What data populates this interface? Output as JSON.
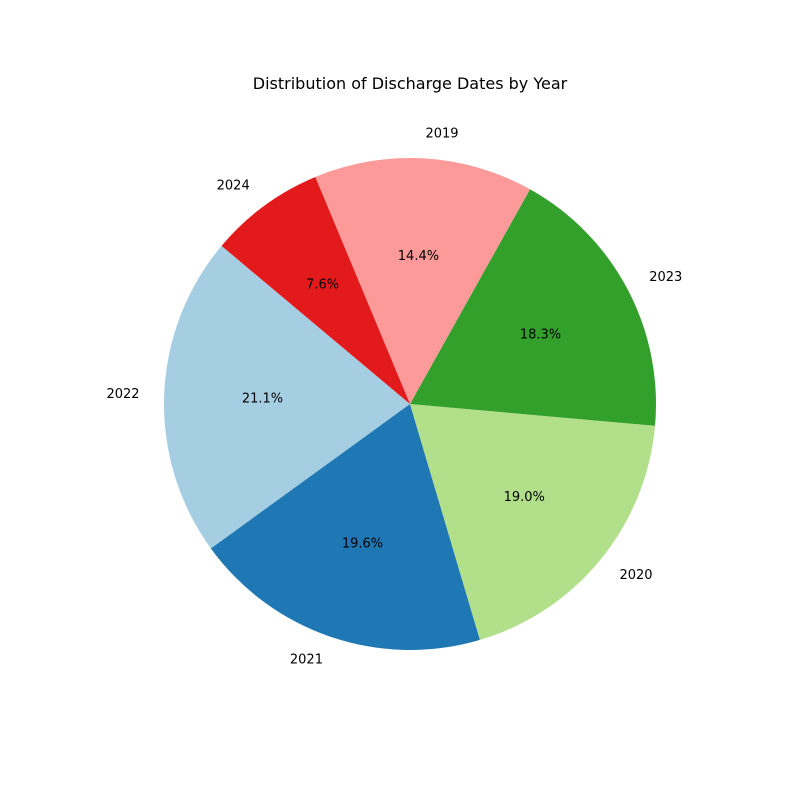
{
  "chart_data": {
    "type": "pie",
    "title": "Distribution of Discharge Dates by Year",
    "slices": [
      {
        "label": "2022",
        "value": 21.1,
        "pct_label": "21.1%",
        "color": "#a6cee3"
      },
      {
        "label": "2021",
        "value": 19.6,
        "pct_label": "19.6%",
        "color": "#1f78b4"
      },
      {
        "label": "2020",
        "value": 19.0,
        "pct_label": "19.0%",
        "color": "#b2df8a"
      },
      {
        "label": "2023",
        "value": 18.3,
        "pct_label": "18.3%",
        "color": "#33a02c"
      },
      {
        "label": "2019",
        "value": 14.4,
        "pct_label": "14.4%",
        "color": "#fb9a99"
      },
      {
        "label": "2024",
        "value": 7.6,
        "pct_label": "7.6%",
        "color": "#e31a1c"
      }
    ],
    "start_angle_deg": 140,
    "direction": "counterclockwise"
  }
}
